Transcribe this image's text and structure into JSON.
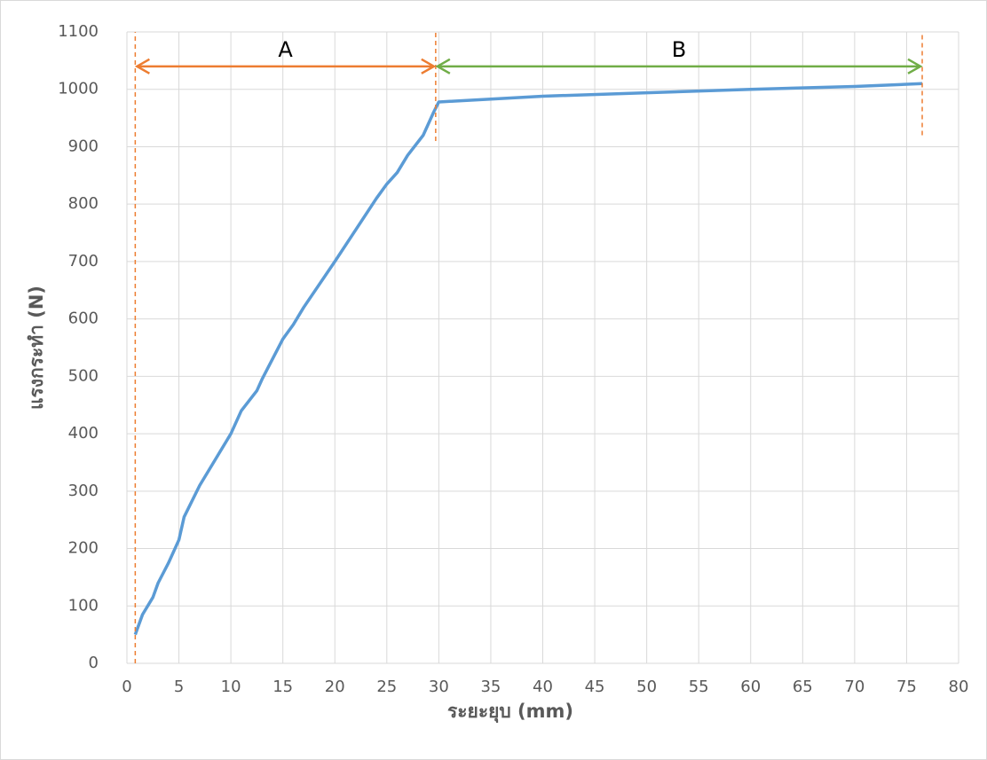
{
  "chart_data": {
    "type": "line",
    "x_label": "ระยะยุบ (mm)",
    "y_label": "แรงกระทำ (N)",
    "xlim": [
      0,
      80
    ],
    "xticks": [
      0,
      5,
      10,
      15,
      20,
      25,
      30,
      35,
      40,
      45,
      50,
      55,
      60,
      65,
      70,
      75,
      80
    ],
    "ylim": [
      0,
      1100
    ],
    "yticks": [
      0,
      100,
      200,
      300,
      400,
      500,
      600,
      700,
      800,
      900,
      1000,
      1100
    ],
    "grid": true,
    "series": [
      {
        "color": "#5b9bd5",
        "x": [
          0.8,
          1.5,
          2.5,
          3,
          4,
          5,
          5.5,
          7,
          8.5,
          10,
          11,
          12.5,
          13,
          14,
          15,
          16,
          17,
          20,
          22,
          24,
          25,
          26,
          27,
          28.5,
          29.5,
          30,
          40,
          50,
          60,
          70,
          76.5
        ],
        "values": [
          50,
          85,
          115,
          140,
          175,
          215,
          255,
          310,
          355,
          400,
          440,
          475,
          495,
          530,
          565,
          590,
          620,
          700,
          755,
          810,
          835,
          855,
          885,
          920,
          960,
          978,
          988,
          994,
          1000,
          1005,
          1010
        ]
      }
    ],
    "annotations": [
      {
        "label": "A",
        "x": [
          0.8,
          29.7
        ],
        "y": 1040,
        "color": "#ed7d31"
      },
      {
        "label": "B",
        "x": [
          29.7,
          76.5
        ],
        "y": 1040,
        "color": "#70ad47"
      }
    ],
    "dashed_color": "#ed7d31",
    "dashed_lines": [
      {
        "x": 0.8,
        "y": [
          0,
          1100
        ]
      },
      {
        "x": 29.7,
        "y": [
          910,
          1100
        ]
      },
      {
        "x": 76.5,
        "y": [
          920,
          1100
        ]
      }
    ]
  }
}
